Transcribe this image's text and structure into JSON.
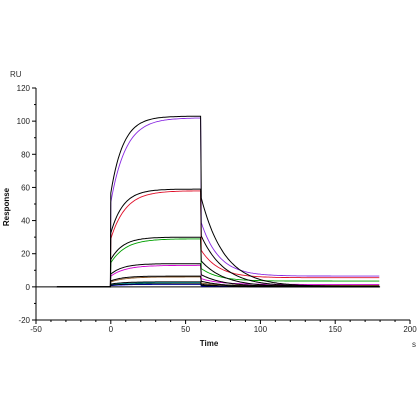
{
  "chart_data": {
    "type": "line",
    "title": "",
    "xlabel": "Time",
    "ylabel": "Response",
    "x_unit": "s",
    "y_unit": "RU",
    "xlim": [
      -50,
      200
    ],
    "ylim": [
      -20,
      120
    ],
    "x_ticks": [
      -50,
      0,
      50,
      100,
      150,
      200
    ],
    "y_ticks": [
      -20,
      0,
      20,
      40,
      60,
      80,
      100,
      120
    ],
    "x_minor_step": 10,
    "y_minor_step": 10,
    "grid": false,
    "legend": "none",
    "association_end": 60,
    "run_end": 180,
    "series": [
      {
        "kind": "measured",
        "color": "#8a2be2",
        "plateau": 102,
        "end_of_association": 102,
        "final": 6.5
      },
      {
        "kind": "measured",
        "color": "#e0102a",
        "plateau": 58,
        "end_of_association": 58,
        "final": 5.5
      },
      {
        "kind": "measured",
        "color": "#00a000",
        "plateau": 29,
        "end_of_association": 29,
        "final": 3.5
      },
      {
        "kind": "measured",
        "color": "#d200d2",
        "plateau": 13,
        "end_of_association": 13,
        "final": 1.5
      },
      {
        "kind": "measured",
        "color": "#8b5a2b",
        "plateau": 6,
        "end_of_association": 6,
        "final": 0.8
      },
      {
        "kind": "measured",
        "color": "#00b5b5",
        "plateau": 2.5,
        "end_of_association": 2.5,
        "final": 0.2
      },
      {
        "kind": "measured",
        "color": "#0000ff",
        "plateau": 1.5,
        "end_of_association": 1.5,
        "final": 0.1
      },
      {
        "kind": "fit",
        "color": "#000000",
        "plateau": 103,
        "end_of_association": 103,
        "final": 0.3
      },
      {
        "kind": "fit",
        "color": "#000000",
        "plateau": 59,
        "end_of_association": 59,
        "final": 0.2
      },
      {
        "kind": "fit",
        "color": "#000000",
        "plateau": 30,
        "end_of_association": 30,
        "final": 0.1
      },
      {
        "kind": "fit",
        "color": "#000000",
        "plateau": 14,
        "end_of_association": 14,
        "final": 0.1
      },
      {
        "kind": "fit",
        "color": "#000000",
        "plateau": 6.5,
        "end_of_association": 6.5,
        "final": 0.0
      },
      {
        "kind": "fit",
        "color": "#000000",
        "plateau": 3,
        "end_of_association": 3,
        "final": 0.0
      },
      {
        "kind": "fit",
        "color": "#000000",
        "plateau": 1.8,
        "end_of_association": 1.8,
        "final": 0.0
      }
    ]
  }
}
